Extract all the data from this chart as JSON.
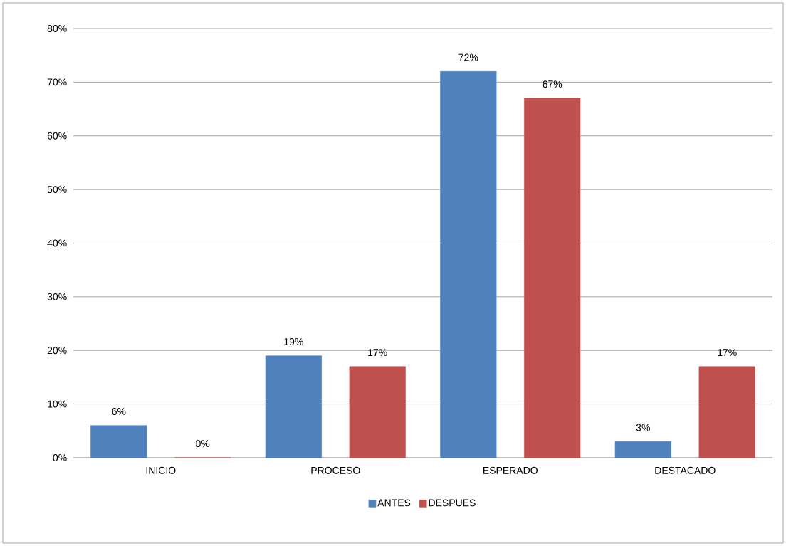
{
  "chart_data": {
    "type": "bar",
    "categories": [
      "INICIO",
      "PROCESO",
      "ESPERADO",
      "DESTACADO"
    ],
    "series": [
      {
        "name": "ANTES",
        "color": "#4f81bd",
        "values": [
          6,
          19,
          72,
          3
        ],
        "value_labels": [
          "6%",
          "19%",
          "72%",
          "3%"
        ]
      },
      {
        "name": "DESPUES",
        "color": "#c0504d",
        "values": [
          0,
          17,
          67,
          17
        ],
        "value_labels": [
          "0%",
          "17%",
          "67%",
          "17%"
        ]
      }
    ],
    "ylim": [
      0,
      80
    ],
    "yticks": [
      {
        "value": 0,
        "label": "0%"
      },
      {
        "value": 10,
        "label": "10%"
      },
      {
        "value": 20,
        "label": "20%"
      },
      {
        "value": 30,
        "label": "30%"
      },
      {
        "value": 40,
        "label": "40%"
      },
      {
        "value": 50,
        "label": "50%"
      },
      {
        "value": 60,
        "label": "60%"
      },
      {
        "value": 70,
        "label": "70%"
      },
      {
        "value": 80,
        "label": "80%"
      }
    ],
    "grid": "y",
    "legend": "bottom"
  }
}
